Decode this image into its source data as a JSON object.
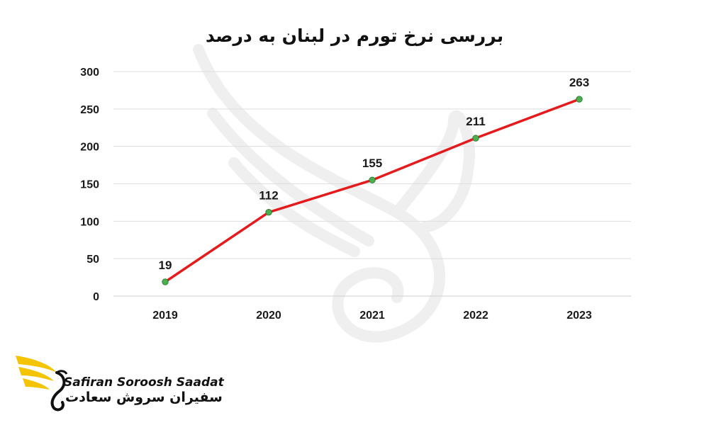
{
  "chart_data": {
    "type": "line",
    "title": "بررسی نرخ تورم در لبنان به درصد",
    "categories": [
      "2019",
      "2020",
      "2021",
      "2022",
      "2023"
    ],
    "values": [
      19,
      112,
      155,
      211,
      263
    ],
    "data_labels": [
      "19",
      "112",
      "155",
      "211",
      "263"
    ],
    "y_ticks": [
      "0",
      "50",
      "100",
      "150",
      "200",
      "250",
      "300"
    ],
    "ylim": [
      0,
      300
    ],
    "xlabel": "",
    "ylabel": "",
    "grid": true,
    "line_color": "#e41a1c",
    "marker_color": "#4caf50"
  },
  "brand": {
    "name_en": "Safiran Soroosh Saadat",
    "name_fa": "سفیران سروش سعادت",
    "accent_color": "#f5c400"
  }
}
